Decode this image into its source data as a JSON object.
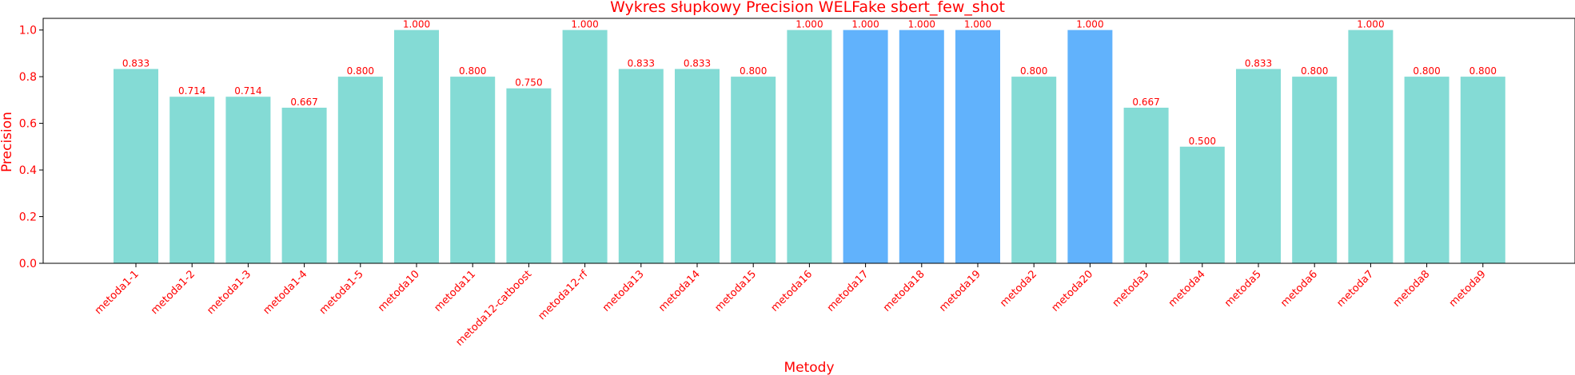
{
  "chart_data": {
    "type": "bar",
    "title": "Wykres słupkowy Precision WELFake sbert_few_shot",
    "xlabel": "Metody",
    "ylabel": "Precision",
    "ylim": [
      0,
      1.05
    ],
    "yticks": [
      "0.0",
      "0.2",
      "0.4",
      "0.6",
      "0.8",
      "1.0"
    ],
    "grid": false,
    "categories": [
      "metoda1-1",
      "metoda1-2",
      "metoda1-3",
      "metoda1-4",
      "metoda1-5",
      "metoda10",
      "metoda11",
      "metoda12-catboost",
      "metoda12-rf",
      "metoda13",
      "metoda14",
      "metoda15",
      "metoda16",
      "metoda17",
      "metoda18",
      "metoda19",
      "metoda2",
      "metoda20",
      "metoda3",
      "metoda4",
      "metoda5",
      "metoda6",
      "metoda7",
      "metoda8",
      "metoda9"
    ],
    "values": [
      0.833,
      0.714,
      0.714,
      0.667,
      0.8,
      1.0,
      0.8,
      0.75,
      1.0,
      0.833,
      0.833,
      0.8,
      1.0,
      1.0,
      1.0,
      1.0,
      0.8,
      1.0,
      0.667,
      0.5,
      0.833,
      0.8,
      1.0,
      0.8,
      0.8
    ],
    "value_labels": [
      "0.833",
      "0.714",
      "0.714",
      "0.667",
      "0.800",
      "1.000",
      "0.800",
      "0.750",
      "1.000",
      "0.833",
      "0.833",
      "0.800",
      "1.000",
      "1.000",
      "1.000",
      "1.000",
      "0.800",
      "1.000",
      "0.667",
      "0.500",
      "0.833",
      "0.800",
      "1.000",
      "0.800",
      "0.800"
    ],
    "highlighted": [
      false,
      false,
      false,
      false,
      false,
      false,
      false,
      false,
      false,
      false,
      false,
      false,
      false,
      true,
      true,
      true,
      false,
      true,
      false,
      false,
      false,
      false,
      false,
      false,
      false
    ],
    "colors": {
      "bar": "#84dbd5",
      "highlight": "#61b2fc",
      "text": "#ff0000",
      "axis": "#000000"
    }
  }
}
